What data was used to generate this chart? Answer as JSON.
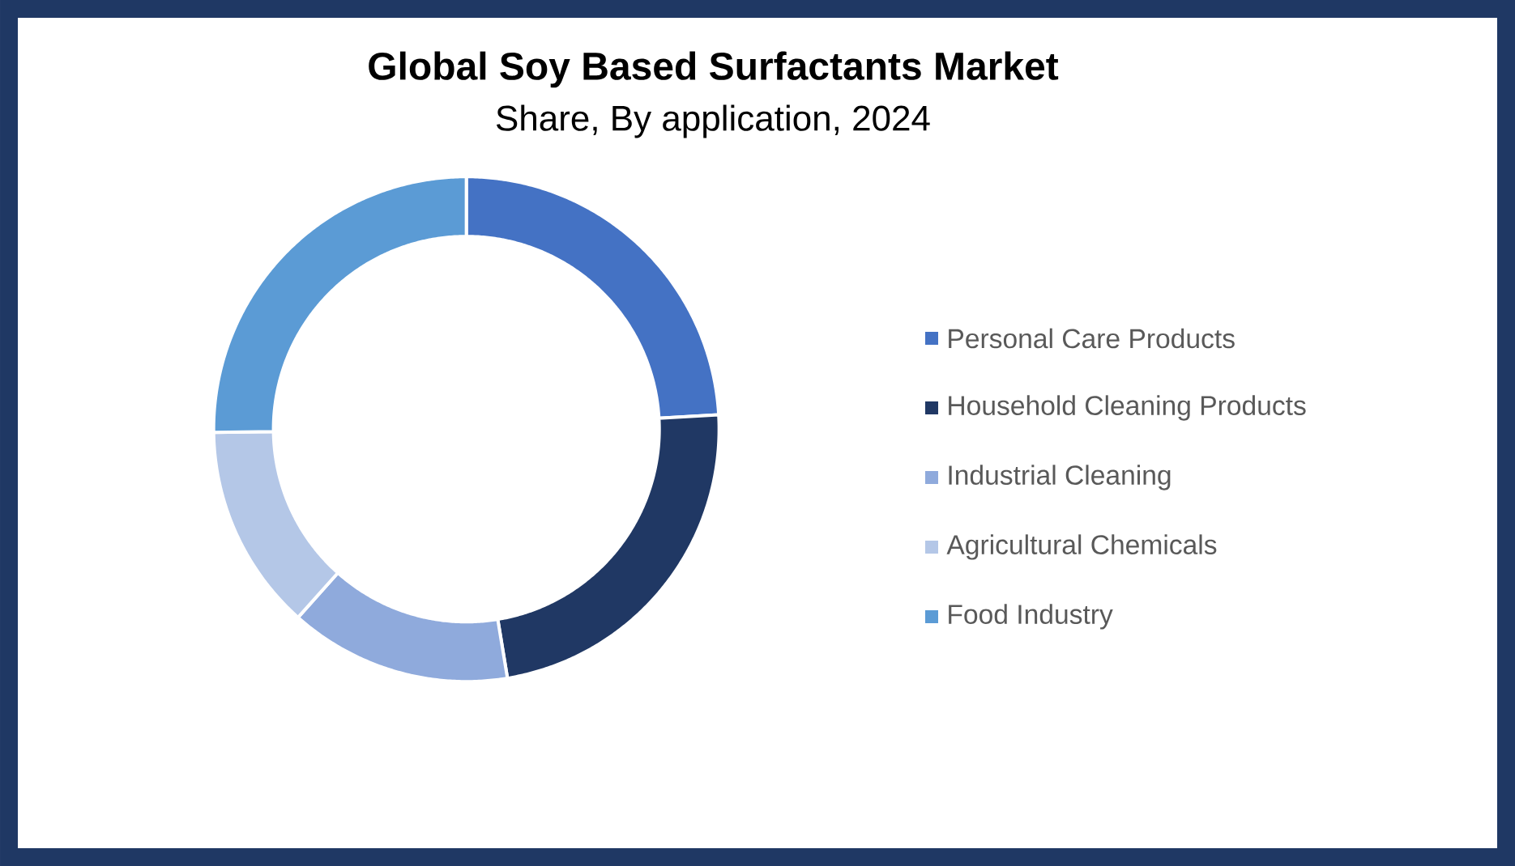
{
  "chart_data": {
    "type": "donut",
    "title": "Global Soy Based Surfactants Market",
    "subtitle": "Share, By application, 2024",
    "categories": [
      "Personal Care Products",
      "Household Cleaning Products",
      "Industrial Cleaning",
      "Agricultural Chemicals",
      "Food Industry"
    ],
    "values": [
      24.1,
      23.3,
      14.2,
      13.2,
      25.2
    ],
    "colors": [
      "#4472c4",
      "#203864",
      "#8faadc",
      "#b4c7e7",
      "#5b9bd5"
    ],
    "legend": "right"
  }
}
